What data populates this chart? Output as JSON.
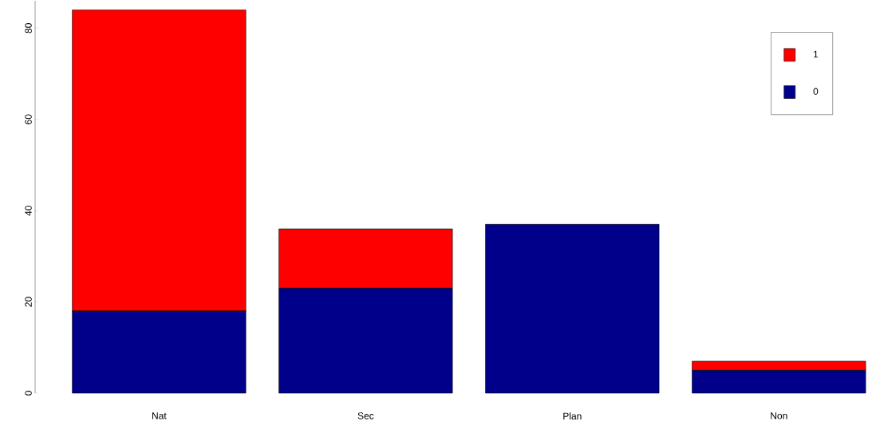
{
  "chart_data": {
    "type": "bar",
    "stacked": true,
    "categories": [
      "Nat",
      "Sec",
      "Plan",
      "Non"
    ],
    "series": [
      {
        "name": "0",
        "color": "#00008b",
        "values": [
          18,
          23,
          37,
          5
        ]
      },
      {
        "name": "1",
        "color": "#ff0000",
        "values": [
          66,
          13,
          0,
          2
        ]
      }
    ],
    "ylim": [
      0,
      86
    ],
    "yticks": [
      0,
      20,
      40,
      60,
      80
    ],
    "legend": "top right",
    "grid": false
  }
}
